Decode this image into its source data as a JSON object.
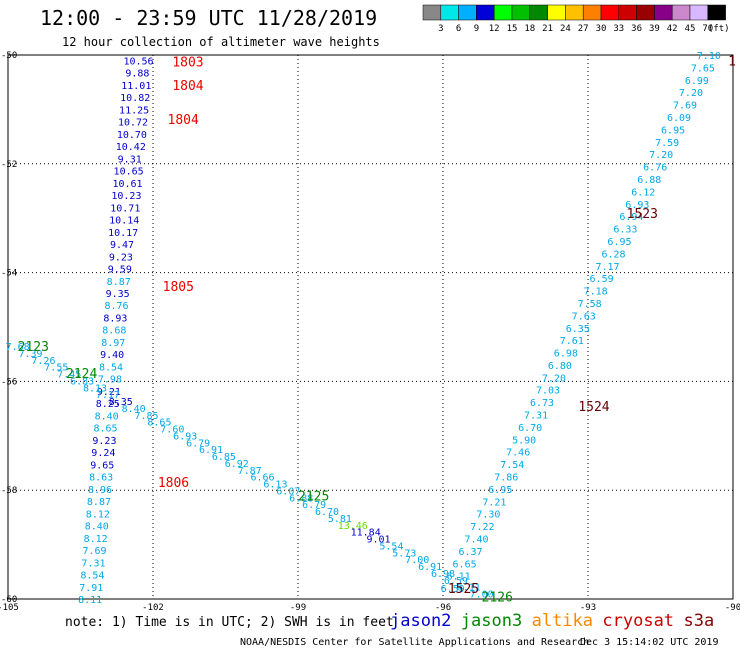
{
  "header": {
    "title": "12:00 - 23:59 UTC 11/28/2019",
    "subtitle": "12 hour collection of altimeter wave heights"
  },
  "legend": {
    "unit": "(ft)",
    "colors": [
      "#888888",
      "#00e8e8",
      "#00b0ff",
      "#0000d8",
      "#00ff00",
      "#00c000",
      "#008800",
      "#ffff00",
      "#ffc000",
      "#ff8000",
      "#ff0000",
      "#cc0000",
      "#990000",
      "#880088",
      "#cc88cc",
      "#d8b8ff",
      "#000000"
    ],
    "labels": [
      "3",
      "6",
      "9",
      "12",
      "15",
      "18",
      "21",
      "24",
      "27",
      "30",
      "33",
      "36",
      "39",
      "42",
      "45",
      "70"
    ]
  },
  "footer": {
    "note": "note: 1) Time is in UTC; 2) SWH is in feet",
    "satellites": [
      {
        "name": "jason2",
        "color": "#0000cc"
      },
      {
        "name": "jason3",
        "color": "#008800"
      },
      {
        "name": "altika",
        "color": "#ff8800"
      },
      {
        "name": "cryosat",
        "color": "#cc0000"
      },
      {
        "name": "s3a",
        "color": "#880000"
      }
    ],
    "credit": "NOAA/NESDIS Center for Satellite Applications and Research",
    "timestamp": "Dec  3 15:14:02 UTC 2019"
  },
  "chart_data": {
    "type": "scatter",
    "xlim": [
      -105,
      -90
    ],
    "ylim": [
      -60,
      -50
    ],
    "x_ticks": [
      "-105",
      "-102",
      "-99",
      "-96",
      "-93",
      "-90"
    ],
    "y_ticks": [
      "-50",
      "-52",
      "-54",
      "-56",
      "-58",
      "-60"
    ],
    "grid": true,
    "pass_labels": [
      {
        "text": "1803",
        "x": -101.6,
        "y": -50.12,
        "color": "#ee0000"
      },
      {
        "text": "1804",
        "x": -101.6,
        "y": -50.55,
        "color": "#ee0000"
      },
      {
        "text": "1804",
        "x": -101.7,
        "y": -51.18,
        "color": "#ee0000"
      },
      {
        "text": "1805",
        "x": -101.8,
        "y": -54.25,
        "color": "#ee0000"
      },
      {
        "text": "1806",
        "x": -101.9,
        "y": -57.85,
        "color": "#ee0000"
      },
      {
        "text": "2123",
        "x": -104.8,
        "y": -55.35,
        "color": "#008800"
      },
      {
        "text": "2124",
        "x": -103.8,
        "y": -55.85,
        "color": "#008800"
      },
      {
        "text": "2125",
        "x": -99.0,
        "y": -58.1,
        "color": "#008800"
      },
      {
        "text": "2126",
        "x": -95.2,
        "y": -59.95,
        "color": "#008800"
      },
      {
        "text": "1525",
        "x": -95.9,
        "y": -59.8,
        "color": "#660000"
      },
      {
        "text": "1524",
        "x": -93.2,
        "y": -56.45,
        "color": "#660000"
      },
      {
        "text": "1523",
        "x": -92.2,
        "y": -52.9,
        "color": "#660000"
      },
      {
        "text": "1",
        "x": -90.1,
        "y": -50.1,
        "color": "#660000"
      }
    ],
    "tracks": [
      {
        "name": "cryosat-1803-1806",
        "color": "#0000cc",
        "x0": -102.3,
        "x1": -103.3,
        "y0": -50.1,
        "y1": -60.0,
        "values": [
          "10.56",
          "9.88",
          "11.01",
          "10.82",
          "11.25",
          "10.72",
          "10.70",
          "10.42",
          "9.31",
          "10.65",
          "10.61",
          "10.23",
          "10.71",
          "10.14",
          "10.17",
          "9.47",
          "9.23",
          "9.59",
          "8.87",
          "9.35",
          "8.76",
          "8.93",
          "8.68",
          "8.97",
          "9.40",
          "8.54",
          "7.98",
          "9.21",
          "8.25",
          "8.40",
          "8.65",
          "9.23",
          "9.24",
          "9.65",
          "8.63",
          "8.96",
          "8.87",
          "8.12",
          "8.40",
          "8.12",
          "7.69",
          "7.31",
          "8.54",
          "7.91",
          "8.11"
        ],
        "colors": [
          "#0000cc",
          "#0000cc",
          "#0000cc",
          "#0000cc",
          "#0000cc",
          "#0000cc",
          "#0000cc",
          "#0000cc",
          "#0000cc",
          "#0000cc",
          "#0000cc",
          "#0000cc",
          "#0000cc",
          "#0000cc",
          "#0000cc",
          "#0000cc",
          "#0000cc",
          "#0000cc",
          "#00a8e8",
          "#0000cc",
          "#00a8e8",
          "#0000cc",
          "#00a8e8",
          "#00a8e8",
          "#0000cc",
          "#00a8e8",
          "#00a8e8",
          "#0000cc",
          "#0000cc",
          "#00a8e8",
          "#00a8e8",
          "#0000cc",
          "#0000cc",
          "#0000cc",
          "#00a8e8",
          "#00a8e8",
          "#00a8e8",
          "#00a8e8",
          "#00a8e8",
          "#00a8e8",
          "#00a8e8",
          "#00a8e8",
          "#00a8e8",
          "#00a8e8",
          "#00a8e8"
        ]
      },
      {
        "name": "jason3-2123-2126",
        "color": "#00a8e8",
        "x0": -104.8,
        "x1": -95.2,
        "y0": -55.35,
        "y1": -59.9,
        "values": [
          "7.68",
          "7.39",
          "7.26",
          "7.55",
          "7.45",
          "6.83",
          "8.13",
          "7.17",
          "8.35",
          "8.40",
          "7.85",
          "8.65",
          "7.60",
          "6.93",
          "6.79",
          "6.91",
          "6.85",
          "6.92",
          "7.87",
          "6.66",
          "6.13",
          "6.07",
          "6.88",
          "6.79",
          "6.70",
          "5.81",
          "13.46",
          "11.84",
          "9.01",
          "5.54",
          "5.73",
          "7.00",
          "6.91",
          "6.98",
          "6.59",
          "6.11",
          "7.00"
        ],
        "colors": [
          "#00a8e8",
          "#00a8e8",
          "#00a8e8",
          "#00a8e8",
          "#00a8e8",
          "#00a8e8",
          "#00a8e8",
          "#00a8e8",
          "#0000cc",
          "#00a8e8",
          "#00a8e8",
          "#00a8e8",
          "#00a8e8",
          "#00a8e8",
          "#00a8e8",
          "#00a8e8",
          "#00a8e8",
          "#00a8e8",
          "#00a8e8",
          "#00a8e8",
          "#00a8e8",
          "#00a8e8",
          "#00a8e8",
          "#00a8e8",
          "#00a8e8",
          "#00a8e8",
          "#66dd00",
          "#0000cc",
          "#0000cc",
          "#00a8e8",
          "#00a8e8",
          "#00a8e8",
          "#00a8e8",
          "#00a8e8",
          "#00a8e8",
          "#00a8e8",
          "#00a8e8"
        ]
      },
      {
        "name": "s3a-1523-1525",
        "color": "#00a8e8",
        "x0": -90.5,
        "x1": -95.8,
        "y0": -50.0,
        "y1": -59.8,
        "values": [
          "7.10",
          "7.65",
          "6.99",
          "7.20",
          "7.69",
          "6.09",
          "6.95",
          "7.59",
          "7.20",
          "6.76",
          "6.88",
          "6.12",
          "6.93",
          "6.94",
          "6.33",
          "6.95",
          "6.28",
          "7.17",
          "6.59",
          "7.18",
          "7.58",
          "7.63",
          "6.35",
          "7.61",
          "6.98",
          "6.80",
          "7.20",
          "7.03",
          "6.73",
          "7.31",
          "6.70",
          "5.90",
          "7.46",
          "7.54",
          "7.86",
          "6.95",
          "7.21",
          "7.30",
          "7.22",
          "7.40",
          "6.37",
          "6.65",
          "6.11",
          "6.59"
        ],
        "colors": []
      }
    ]
  }
}
